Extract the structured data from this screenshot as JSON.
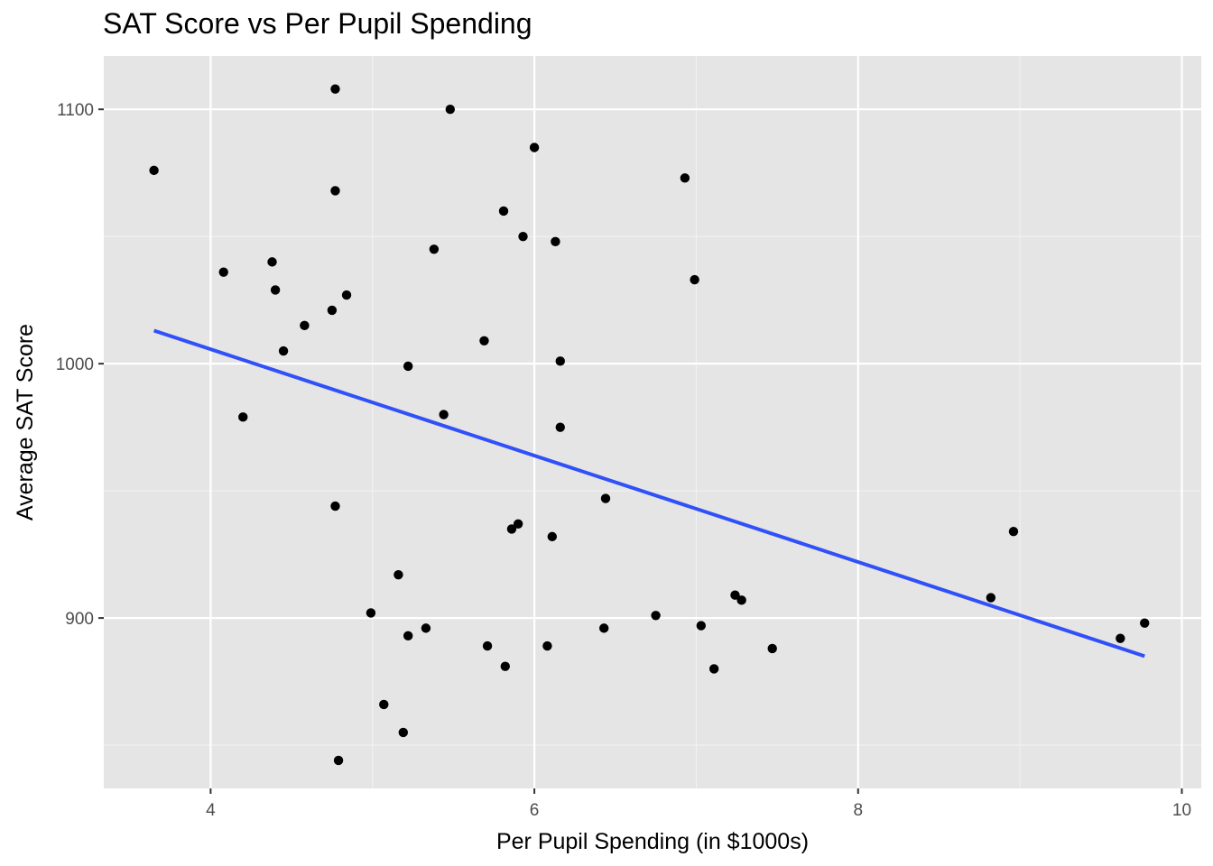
{
  "chart_data": {
    "type": "scatter",
    "title": "SAT Score vs Per Pupil Spending",
    "xlabel": "Per Pupil Spending (in $1000s)",
    "ylabel": "Average SAT Score",
    "xlim": [
      3.34,
      10.12
    ],
    "ylim": [
      833,
      1121
    ],
    "x_ticks": [
      4,
      6,
      8,
      10
    ],
    "y_ticks": [
      900,
      1000,
      1100
    ],
    "x_tick_labels": [
      "4",
      "6",
      "8",
      "10"
    ],
    "y_tick_labels": [
      "900",
      "1000",
      "1100"
    ],
    "grid": true,
    "colors": {
      "panel_background": "#e5e5e5",
      "grid_major": "#ffffff",
      "grid_minor": "#f2f2f2",
      "points": "#000000",
      "trend_line": "#3050f8",
      "tick_text": "#4d4d4d"
    },
    "series": [
      {
        "points": [
          [
            3.65,
            1076
          ],
          [
            4.08,
            1036
          ],
          [
            4.2,
            979
          ],
          [
            4.38,
            1040
          ],
          [
            4.4,
            1029
          ],
          [
            4.45,
            1005
          ],
          [
            4.58,
            1015
          ],
          [
            4.75,
            1021
          ],
          [
            4.77,
            1108
          ],
          [
            4.77,
            1068
          ],
          [
            4.77,
            944
          ],
          [
            4.79,
            844
          ],
          [
            4.84,
            1027
          ],
          [
            4.99,
            902
          ],
          [
            5.07,
            866
          ],
          [
            5.16,
            917
          ],
          [
            5.19,
            855
          ],
          [
            5.22,
            999
          ],
          [
            5.22,
            893
          ],
          [
            5.33,
            896
          ],
          [
            5.38,
            1045
          ],
          [
            5.44,
            980
          ],
          [
            5.48,
            1100
          ],
          [
            5.69,
            1009
          ],
          [
            5.71,
            889
          ],
          [
            5.81,
            1060
          ],
          [
            5.82,
            881
          ],
          [
            5.86,
            935
          ],
          [
            5.9,
            937
          ],
          [
            5.93,
            1050
          ],
          [
            6.0,
            1085
          ],
          [
            6.08,
            889
          ],
          [
            6.11,
            932
          ],
          [
            6.13,
            1048
          ],
          [
            6.16,
            1001
          ],
          [
            6.16,
            975
          ],
          [
            6.43,
            896
          ],
          [
            6.44,
            947
          ],
          [
            6.75,
            901
          ],
          [
            6.93,
            1073
          ],
          [
            6.99,
            1033
          ],
          [
            7.03,
            897
          ],
          [
            7.11,
            880
          ],
          [
            7.24,
            909
          ],
          [
            7.28,
            907
          ],
          [
            7.47,
            888
          ],
          [
            8.82,
            908
          ],
          [
            8.96,
            934
          ],
          [
            9.62,
            892
          ],
          [
            9.77,
            898
          ]
        ]
      }
    ],
    "trend_line": {
      "x": [
        3.65,
        9.77
      ],
      "y": [
        1013,
        885
      ]
    }
  }
}
